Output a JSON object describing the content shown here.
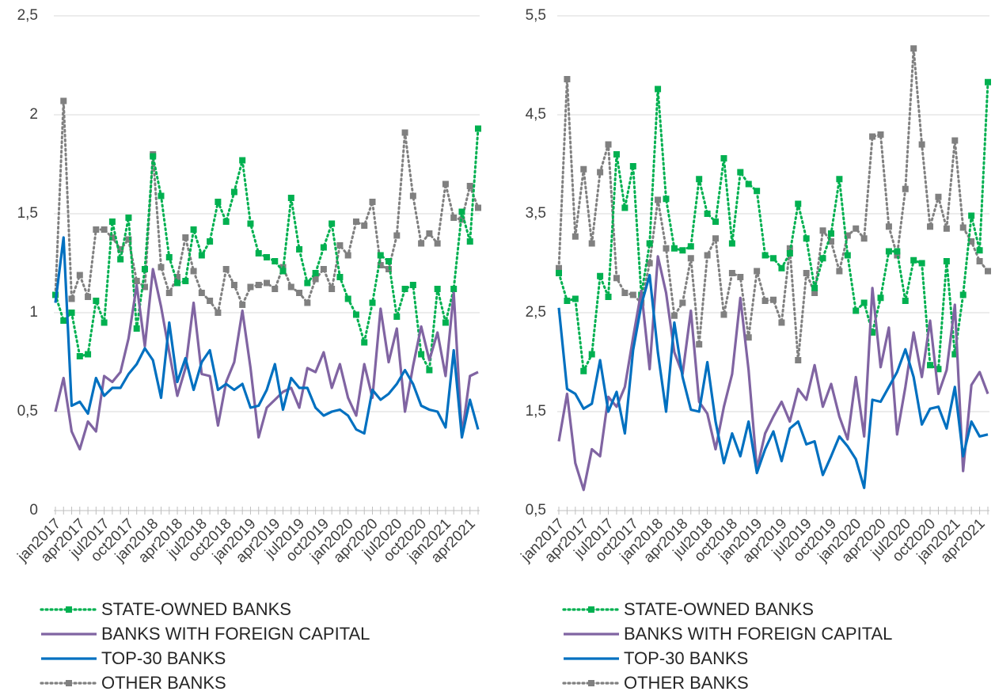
{
  "chart_data": [
    {
      "type": "line",
      "categories": [
        "jan2017",
        null,
        null,
        "apr2017",
        null,
        null,
        "jul2017",
        null,
        null,
        "oct2017",
        null,
        null,
        "jan2018",
        null,
        null,
        "apr2018",
        null,
        null,
        "jul2018",
        null,
        null,
        "oct2018",
        null,
        null,
        "jan2019",
        null,
        null,
        "apr2019",
        null,
        null,
        "jul2019",
        null,
        null,
        "oct2019",
        null,
        null,
        "jan2020",
        null,
        null,
        "apr2020",
        null,
        null,
        "jul2020",
        null,
        null,
        "oct2020",
        null,
        null,
        "jan2021",
        null,
        null,
        "apr2021",
        null
      ],
      "ylim": [
        0,
        2.5
      ],
      "yticks": [
        0,
        {
          "value": 0.5,
          "label": "0,5"
        },
        1,
        {
          "value": 1.5,
          "label": "1,5"
        },
        2,
        {
          "value": 2.5,
          "label": "2,5"
        }
      ],
      "grid": true,
      "series": [
        {
          "name": "STATE-OWNED BANKS",
          "color": "#00b050",
          "line_style": "dotted",
          "marker": "square",
          "values": [
            1.09,
            0.96,
            1.0,
            0.78,
            0.79,
            1.06,
            0.95,
            1.46,
            1.27,
            1.48,
            0.92,
            1.22,
            1.79,
            1.59,
            1.28,
            1.15,
            1.16,
            1.42,
            1.29,
            1.36,
            1.56,
            1.46,
            1.61,
            1.77,
            1.45,
            1.3,
            1.28,
            1.26,
            1.21,
            1.58,
            1.32,
            1.15,
            1.2,
            1.33,
            1.45,
            1.18,
            1.07,
            0.99,
            0.85,
            1.05,
            1.29,
            1.26,
            0.98,
            1.12,
            1.14,
            0.79,
            0.71,
            1.12,
            0.95,
            1.12,
            1.51,
            1.36,
            1.93
          ]
        },
        {
          "name": "BANKS WITH FOREIGN CAPITAL",
          "color": "#8064a2",
          "line_style": "solid",
          "marker": "none",
          "values": [
            0.5,
            0.67,
            0.4,
            0.31,
            0.45,
            0.4,
            0.68,
            0.65,
            0.7,
            0.87,
            1.14,
            0.83,
            1.22,
            1.03,
            0.8,
            0.58,
            0.72,
            1.05,
            0.69,
            0.68,
            0.43,
            0.65,
            0.75,
            1.01,
            0.72,
            0.37,
            0.52,
            0.56,
            0.6,
            0.62,
            0.52,
            0.72,
            0.7,
            0.8,
            0.62,
            0.74,
            0.57,
            0.48,
            0.74,
            0.57,
            1.02,
            0.75,
            0.92,
            0.5,
            0.73,
            0.93,
            0.76,
            0.9,
            0.68,
            1.1,
            0.38,
            0.68,
            0.7
          ]
        },
        {
          "name": "TOP-30 BANKS",
          "color": "#0070c0",
          "line_style": "solid",
          "marker": "none",
          "values": [
            1.05,
            1.38,
            0.53,
            0.55,
            0.49,
            0.67,
            0.58,
            0.62,
            0.62,
            0.69,
            0.74,
            0.82,
            0.76,
            0.57,
            0.95,
            0.65,
            0.77,
            0.61,
            0.75,
            0.81,
            0.61,
            0.64,
            0.61,
            0.64,
            0.52,
            0.53,
            0.61,
            0.74,
            0.51,
            0.67,
            0.62,
            0.62,
            0.52,
            0.48,
            0.5,
            0.51,
            0.48,
            0.41,
            0.39,
            0.61,
            0.56,
            0.59,
            0.64,
            0.71,
            0.64,
            0.53,
            0.51,
            0.5,
            0.42,
            0.81,
            0.37,
            0.56,
            0.41
          ]
        },
        {
          "name": "OTHER BANKS",
          "color": "#808080",
          "line_style": "dotted",
          "marker": "square",
          "values": [
            1.09,
            2.07,
            1.07,
            1.19,
            1.08,
            1.42,
            1.42,
            1.38,
            1.32,
            1.37,
            1.16,
            1.13,
            1.8,
            1.23,
            1.1,
            1.18,
            1.38,
            1.21,
            1.1,
            1.06,
            1.0,
            1.22,
            1.14,
            1.04,
            1.13,
            1.14,
            1.15,
            1.12,
            1.23,
            1.13,
            1.1,
            1.05,
            1.17,
            1.22,
            1.12,
            1.34,
            1.29,
            1.46,
            1.44,
            1.56,
            1.24,
            1.22,
            1.39,
            1.91,
            1.59,
            1.35,
            1.4,
            1.35,
            1.65,
            1.48,
            1.47,
            1.64,
            1.53
          ]
        }
      ]
    },
    {
      "type": "line",
      "categories": [
        "jan2017",
        null,
        null,
        "apr2017",
        null,
        null,
        "jul2017",
        null,
        null,
        "oct2017",
        null,
        null,
        "jan2018",
        null,
        null,
        "apr2018",
        null,
        null,
        "jul2018",
        null,
        null,
        "oct2018",
        null,
        null,
        "jan2019",
        null,
        null,
        "apr2019",
        null,
        null,
        "jul2019",
        null,
        null,
        "oct2019",
        null,
        null,
        "jan2020",
        null,
        null,
        "apr2020",
        null,
        null,
        "jul2020",
        null,
        null,
        "oct2020",
        null,
        null,
        "jan2021",
        null,
        null,
        "apr2021",
        null
      ],
      "ylim": [
        0.5,
        5.5
      ],
      "yticks": [
        {
          "value": 0.5,
          "label": "0,5"
        },
        {
          "value": 1.5,
          "label": "1,5"
        },
        {
          "value": 2.5,
          "label": "2,5"
        },
        {
          "value": 3.5,
          "label": "3,5"
        },
        {
          "value": 4.5,
          "label": "4,5"
        },
        {
          "value": 5.5,
          "label": "5,5"
        }
      ],
      "grid": true,
      "series": [
        {
          "name": "STATE-OWNED BANKS",
          "color": "#00b050",
          "line_style": "dotted",
          "marker": "square",
          "values": [
            2.9,
            2.62,
            2.64,
            1.91,
            2.08,
            2.87,
            2.66,
            4.1,
            3.56,
            3.98,
            2.68,
            3.2,
            4.76,
            3.65,
            3.15,
            3.13,
            3.17,
            3.85,
            3.5,
            3.42,
            4.06,
            3.2,
            3.92,
            3.8,
            3.73,
            3.08,
            3.05,
            2.95,
            3.1,
            3.6,
            3.25,
            2.75,
            3.05,
            3.3,
            3.85,
            3.08,
            2.52,
            2.6,
            2.3,
            2.65,
            3.12,
            3.12,
            2.62,
            3.03,
            3.0,
            1.97,
            1.93,
            3.02,
            2.08,
            2.68,
            3.48,
            3.13,
            4.83
          ]
        },
        {
          "name": "BANKS WITH FOREIGN CAPITAL",
          "color": "#8064a2",
          "line_style": "solid",
          "marker": "none",
          "values": [
            1.2,
            1.68,
            0.98,
            0.71,
            1.12,
            1.05,
            1.65,
            1.55,
            1.75,
            2.25,
            2.72,
            1.93,
            3.07,
            2.7,
            2.1,
            1.88,
            2.52,
            1.6,
            1.48,
            1.12,
            1.55,
            1.88,
            2.65,
            1.92,
            0.92,
            1.28,
            1.45,
            1.6,
            1.4,
            1.73,
            1.62,
            1.97,
            1.55,
            1.78,
            1.45,
            1.22,
            1.85,
            1.25,
            2.75,
            1.95,
            2.35,
            1.27,
            1.75,
            2.3,
            1.85,
            2.42,
            1.68,
            1.92,
            2.58,
            0.9,
            1.77,
            1.9,
            1.68
          ]
        },
        {
          "name": "TOP-30 BANKS",
          "color": "#0070c0",
          "line_style": "solid",
          "marker": "none",
          "values": [
            2.55,
            1.73,
            1.68,
            1.53,
            1.58,
            2.02,
            1.5,
            1.7,
            1.28,
            2.12,
            2.58,
            2.88,
            2.1,
            1.5,
            2.4,
            1.85,
            1.52,
            1.5,
            2.0,
            1.4,
            0.98,
            1.28,
            1.05,
            1.4,
            0.88,
            1.12,
            1.3,
            1.0,
            1.33,
            1.4,
            1.17,
            1.2,
            0.86,
            1.05,
            1.25,
            1.15,
            1.02,
            0.73,
            1.62,
            1.6,
            1.75,
            1.9,
            2.13,
            1.85,
            1.37,
            1.53,
            1.55,
            1.33,
            1.75,
            1.05,
            1.4,
            1.25,
            1.27
          ]
        },
        {
          "name": "OTHER BANKS",
          "color": "#808080",
          "line_style": "dotted",
          "marker": "square",
          "values": [
            2.95,
            4.86,
            3.27,
            3.95,
            3.2,
            3.92,
            4.2,
            2.85,
            2.7,
            2.68,
            2.6,
            3.0,
            3.64,
            3.15,
            2.47,
            2.6,
            3.05,
            2.18,
            3.08,
            3.25,
            2.48,
            2.9,
            2.86,
            2.25,
            2.92,
            2.62,
            2.63,
            2.4,
            3.15,
            2.02,
            2.9,
            2.7,
            3.33,
            3.22,
            2.92,
            3.28,
            3.35,
            3.25,
            4.28,
            4.3,
            3.37,
            3.08,
            3.75,
            5.17,
            4.2,
            3.37,
            3.67,
            3.35,
            4.24,
            3.36,
            3.22,
            3.02,
            2.92
          ]
        }
      ]
    }
  ]
}
